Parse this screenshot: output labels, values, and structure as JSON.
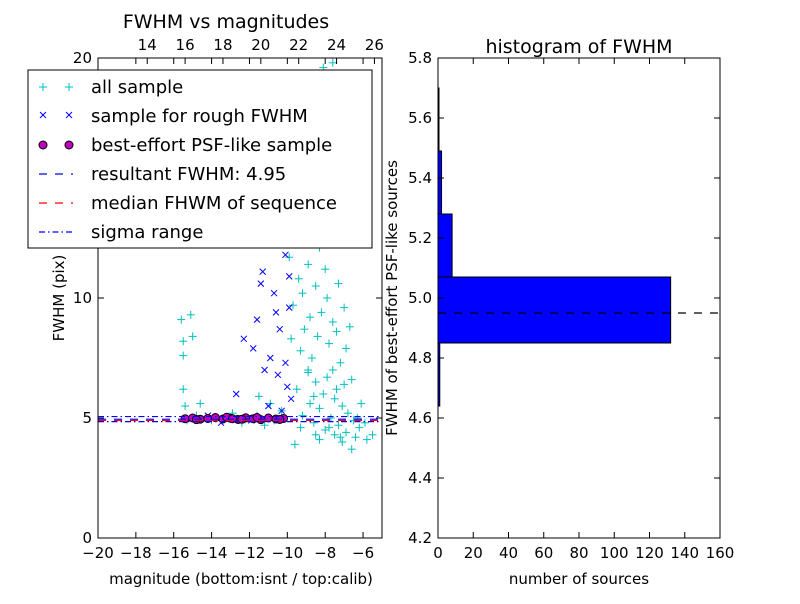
{
  "chart_data": [
    {
      "type": "scatter",
      "title": "FWHM vs magnitudes",
      "xlabel": "magnitude (bottom:isnt / top:calib)",
      "ylabel": "FWHM (pix)",
      "xlim": [
        -20,
        -5
      ],
      "ylim": [
        0,
        20
      ],
      "x_ticks": [
        -20,
        -18,
        -16,
        -14,
        -12,
        -10,
        -8,
        -6
      ],
      "x_tick_labels": [
        "−20",
        "−18",
        "−16",
        "−14",
        "−12",
        "−10",
        "−8",
        "−6"
      ],
      "y_ticks": [
        0,
        5,
        10,
        20
      ],
      "y_tick_labels": [
        "0",
        "5",
        "10",
        "20"
      ],
      "top_axis_ticks": [
        14,
        16,
        18,
        20,
        22,
        24,
        26
      ],
      "top_axis_tick_labels": [
        "14",
        "16",
        "18",
        "20",
        "22",
        "24",
        "26"
      ],
      "top_axis_offset": 31.4,
      "legend_placement": "upper-left",
      "series": [
        {
          "name": "all sample",
          "marker": "plus",
          "color": "#00bfbf",
          "points": [
            [
              -15.6,
              9.1
            ],
            [
              -15.5,
              8.2
            ],
            [
              -15.5,
              7.6
            ],
            [
              -15.1,
              9.3
            ],
            [
              -15.0,
              8.4
            ],
            [
              -15.5,
              6.2
            ],
            [
              -15.4,
              5.5
            ],
            [
              -14.6,
              5.6
            ],
            [
              -8.7,
              18.5
            ],
            [
              -8.1,
              19.6
            ],
            [
              -7.6,
              19.8
            ],
            [
              -9.1,
              14.5
            ],
            [
              -8.6,
              13.8
            ],
            [
              -9.5,
              12.9
            ],
            [
              -8.8,
              12.6
            ],
            [
              -8.3,
              12.1
            ],
            [
              -9.9,
              11.7
            ],
            [
              -8.0,
              11.2
            ],
            [
              -9.4,
              10.8
            ],
            [
              -8.5,
              10.5
            ],
            [
              -7.9,
              10.0
            ],
            [
              -9.7,
              9.7
            ],
            [
              -8.2,
              9.4
            ],
            [
              -7.6,
              9.0
            ],
            [
              -9.1,
              8.7
            ],
            [
              -8.4,
              8.4
            ],
            [
              -7.8,
              8.1
            ],
            [
              -9.3,
              7.8
            ],
            [
              -8.7,
              7.5
            ],
            [
              -7.2,
              7.3
            ],
            [
              -8.9,
              7.0
            ],
            [
              -7.9,
              6.7
            ],
            [
              -8.5,
              6.5
            ],
            [
              -7.0,
              6.4
            ],
            [
              -9.5,
              6.2
            ],
            [
              -8.1,
              6.0
            ],
            [
              -7.5,
              5.8
            ],
            [
              -8.8,
              5.6
            ],
            [
              -7.1,
              5.5
            ],
            [
              -8.3,
              5.4
            ],
            [
              -6.8,
              5.2
            ],
            [
              -9.2,
              5.1
            ],
            [
              -7.7,
              5.0
            ],
            [
              -6.5,
              4.9
            ],
            [
              -8.6,
              4.8
            ],
            [
              -7.3,
              4.7
            ],
            [
              -6.2,
              4.6
            ],
            [
              -8.0,
              4.5
            ],
            [
              -6.9,
              4.4
            ],
            [
              -7.5,
              4.3
            ],
            [
              -6.4,
              4.2
            ],
            [
              -8.3,
              4.1
            ],
            [
              -7.1,
              4.0
            ],
            [
              -5.8,
              4.1
            ],
            [
              -9.6,
              3.9
            ],
            [
              -6.6,
              3.7
            ],
            [
              -5.5,
              4.3
            ],
            [
              -8.9,
              6.9
            ],
            [
              -7.4,
              8.6
            ],
            [
              -8.1,
              15.8
            ],
            [
              -9.0,
              16.6
            ],
            [
              -8.4,
              17.3
            ],
            [
              -7.7,
              12.8
            ],
            [
              -6.9,
              7.9
            ],
            [
              -6.6,
              6.6
            ],
            [
              -6.1,
              5.6
            ],
            [
              -5.9,
              4.8
            ],
            [
              -10.3,
              5.3
            ],
            [
              -10.7,
              4.9
            ],
            [
              -11.6,
              5.1
            ],
            [
              -12.4,
              4.8
            ],
            [
              -13.1,
              5.0
            ],
            [
              -14.0,
              4.9
            ],
            [
              -14.8,
              5.1
            ],
            [
              -15.3,
              4.9
            ],
            [
              -11.2,
              4.7
            ],
            [
              -12.9,
              5.2
            ],
            [
              -10.9,
              5.6
            ],
            [
              -11.5,
              5.9
            ],
            [
              -9.3,
              4.6
            ],
            [
              -7.2,
              4.2
            ],
            [
              -8.5,
              4.3
            ],
            [
              -7.8,
              4.6
            ],
            [
              -8.8,
              9.2
            ],
            [
              -9.2,
              10.2
            ],
            [
              -7.4,
              6.2
            ],
            [
              -6.3,
              5.0
            ],
            [
              -8.6,
              5.9
            ],
            [
              -9.8,
              8.3
            ],
            [
              -8.0,
              13.5
            ],
            [
              -7.3,
              10.6
            ],
            [
              -8.9,
              11.4
            ],
            [
              -7.0,
              9.6
            ],
            [
              -6.7,
              8.8
            ],
            [
              -7.6,
              7.0
            ]
          ]
        },
        {
          "name": "sample for rough FWHM",
          "marker": "x",
          "color": "#0000ff",
          "points": [
            [
              -10.1,
              11.8
            ],
            [
              -11.3,
              11.1
            ],
            [
              -10.7,
              10.2
            ],
            [
              -11.6,
              9.1
            ],
            [
              -10.4,
              8.7
            ],
            [
              -12.3,
              8.3
            ],
            [
              -11.8,
              7.9
            ],
            [
              -10.9,
              7.5
            ],
            [
              -11.2,
              7.0
            ],
            [
              -10.5,
              6.8
            ],
            [
              -12.7,
              6.0
            ],
            [
              -11.0,
              5.5
            ],
            [
              -10.3,
              5.3
            ],
            [
              -9.9,
              9.6
            ],
            [
              -10.2,
              13.3
            ],
            [
              -11.5,
              13.0
            ],
            [
              -10.8,
              12.4
            ],
            [
              -10.0,
              6.3
            ],
            [
              -9.8,
              5.8
            ],
            [
              -12.1,
              5.0
            ],
            [
              -13.5,
              4.8
            ],
            [
              -14.2,
              5.1
            ],
            [
              -10.6,
              9.4
            ],
            [
              -11.4,
              10.6
            ],
            [
              -10.1,
              7.3
            ],
            [
              -9.9,
              10.9
            ],
            [
              -11.9,
              4.9
            ],
            [
              -12.8,
              5.0
            ]
          ]
        },
        {
          "name": "best-effort PSF-like sample",
          "marker": "circle",
          "color": "#bf00bf",
          "points": [
            [
              -15.4,
              4.97
            ],
            [
              -15.0,
              5.0
            ],
            [
              -14.6,
              4.95
            ],
            [
              -14.2,
              4.98
            ],
            [
              -13.8,
              5.02
            ],
            [
              -13.4,
              4.96
            ],
            [
              -13.0,
              4.99
            ],
            [
              -12.6,
              4.94
            ],
            [
              -12.2,
              5.01
            ],
            [
              -11.8,
              4.97
            ],
            [
              -11.4,
              4.93
            ],
            [
              -11.0,
              5.0
            ],
            [
              -10.6,
              4.96
            ],
            [
              -10.2,
              4.98
            ],
            [
              -14.8,
              4.93
            ],
            [
              -13.2,
              5.03
            ],
            [
              -12.4,
              4.95
            ],
            [
              -11.6,
              5.02
            ],
            [
              -10.4,
              4.94
            ],
            [
              -12.9,
              4.97
            ]
          ]
        }
      ],
      "lines": [
        {
          "name": "resultant FWHM: 4.95",
          "y": 4.95,
          "color": "#0000ff",
          "style": "dashed"
        },
        {
          "name": "median FHWM of sequence",
          "y": 4.9,
          "color": "#ff0000",
          "style": "dashed"
        },
        {
          "name": "sigma range",
          "y": [
            4.85,
            5.06
          ],
          "color": "#0000ff",
          "style": "dashdot"
        }
      ]
    },
    {
      "type": "bar",
      "orientation": "horizontal",
      "title": "histogram of FWHM",
      "xlabel": "number of sources",
      "ylabel": "FWHM of best-effort PSF-like sources",
      "xlim": [
        0,
        160
      ],
      "ylim": [
        4.2,
        5.8
      ],
      "x_ticks": [
        0,
        20,
        40,
        60,
        80,
        100,
        120,
        140,
        160
      ],
      "x_tick_labels": [
        "0",
        "20",
        "40",
        "60",
        "80",
        "100",
        "120",
        "140",
        "160"
      ],
      "y_ticks": [
        4.2,
        4.4,
        4.6,
        4.8,
        5.0,
        5.2,
        5.4,
        5.6,
        5.8
      ],
      "y_tick_labels": [
        "4.2",
        "4.4",
        "4.6",
        "4.8",
        "5.0",
        "5.2",
        "5.4",
        "5.6",
        "5.8"
      ],
      "bar_color": "#0000ff",
      "bins": [
        {
          "y0": 4.64,
          "y1": 4.85,
          "count": 1
        },
        {
          "y0": 4.85,
          "y1": 5.07,
          "count": 132
        },
        {
          "y0": 5.07,
          "y1": 5.28,
          "count": 8
        },
        {
          "y0": 5.28,
          "y1": 5.49,
          "count": 2
        },
        {
          "y0": 5.49,
          "y1": 5.7,
          "count": 0.3
        }
      ],
      "reference_line": {
        "y": 4.95,
        "color": "#000000",
        "style": "dashed"
      }
    }
  ]
}
